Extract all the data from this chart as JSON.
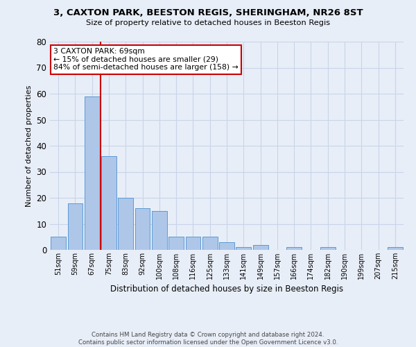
{
  "title": "3, CAXTON PARK, BEESTON REGIS, SHERINGHAM, NR26 8ST",
  "subtitle": "Size of property relative to detached houses in Beeston Regis",
  "xlabel": "Distribution of detached houses by size in Beeston Regis",
  "ylabel": "Number of detached properties",
  "footer_line1": "Contains HM Land Registry data © Crown copyright and database right 2024.",
  "footer_line2": "Contains public sector information licensed under the Open Government Licence v3.0.",
  "annotation_title": "3 CAXTON PARK: 69sqm",
  "annotation_line1": "← 15% of detached houses are smaller (29)",
  "annotation_line2": "84% of semi-detached houses are larger (158) →",
  "bar_labels": [
    "51sqm",
    "59sqm",
    "67sqm",
    "75sqm",
    "83sqm",
    "92sqm",
    "100sqm",
    "108sqm",
    "116sqm",
    "125sqm",
    "133sqm",
    "141sqm",
    "149sqm",
    "157sqm",
    "166sqm",
    "174sqm",
    "182sqm",
    "190sqm",
    "199sqm",
    "207sqm",
    "215sqm"
  ],
  "bar_values": [
    5,
    18,
    59,
    36,
    20,
    16,
    15,
    5,
    5,
    5,
    3,
    1,
    2,
    0,
    1,
    0,
    1,
    0,
    0,
    0,
    1
  ],
  "bar_color": "#aec6e8",
  "bar_edge_color": "#5b9bd5",
  "marker_bar_index": 2,
  "ylim": [
    0,
    80
  ],
  "yticks": [
    0,
    10,
    20,
    30,
    40,
    50,
    60,
    70,
    80
  ],
  "grid_color": "#c8d4e8",
  "background_color": "#e8eef8",
  "red_line_color": "#cc0000",
  "annotation_box_color": "#ffffff",
  "annotation_box_edge": "#cc0000"
}
